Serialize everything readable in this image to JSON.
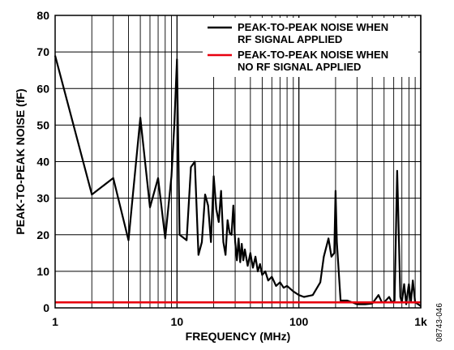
{
  "chart_data": {
    "type": "line",
    "xscale": "log",
    "xlim": [
      1,
      1000
    ],
    "ylim": [
      0,
      80
    ],
    "xlabel": "FREQUENCY (MHz)",
    "ylabel": "PEAK-TO-PEAK NOISE (fF)",
    "xticks": [
      "1",
      "10",
      "100",
      "1k"
    ],
    "yticks": [
      "0",
      "10",
      "20",
      "30",
      "40",
      "50",
      "60",
      "70",
      "80"
    ],
    "grid": true,
    "legend_position": "top-right",
    "figure_id": "08743-046",
    "series": [
      {
        "name_lines": [
          "PEAK-TO-PEAK NOISE WHEN",
          "RF SIGNAL APPLIED"
        ],
        "color": "#000000",
        "points": [
          [
            1,
            69
          ],
          [
            2,
            31
          ],
          [
            3,
            35.5
          ],
          [
            4,
            18.5
          ],
          [
            5,
            52
          ],
          [
            6,
            27.5
          ],
          [
            7,
            35.5
          ],
          [
            8,
            19
          ],
          [
            9,
            36
          ],
          [
            9.5,
            50
          ],
          [
            10,
            68
          ],
          [
            10.5,
            20
          ],
          [
            12,
            18.5
          ],
          [
            13,
            38.5
          ],
          [
            14,
            40
          ],
          [
            15,
            14.5
          ],
          [
            16,
            18
          ],
          [
            17,
            31
          ],
          [
            18,
            28
          ],
          [
            19,
            18
          ],
          [
            20,
            36
          ],
          [
            21,
            27
          ],
          [
            22,
            23.5
          ],
          [
            23,
            32
          ],
          [
            24,
            18
          ],
          [
            25,
            14.5
          ],
          [
            26,
            24
          ],
          [
            27,
            20.5
          ],
          [
            28,
            20
          ],
          [
            29,
            28
          ],
          [
            30,
            18
          ],
          [
            31,
            13
          ],
          [
            32,
            19
          ],
          [
            33,
            12.5
          ],
          [
            34,
            17.5
          ],
          [
            35,
            13
          ],
          [
            36,
            16
          ],
          [
            38,
            11.5
          ],
          [
            40,
            15
          ],
          [
            42,
            11
          ],
          [
            44,
            14
          ],
          [
            46,
            10
          ],
          [
            48,
            12
          ],
          [
            50,
            9
          ],
          [
            53,
            10
          ],
          [
            56,
            7.5
          ],
          [
            60,
            8.5
          ],
          [
            65,
            6
          ],
          [
            70,
            7
          ],
          [
            75,
            5.5
          ],
          [
            80,
            6
          ],
          [
            90,
            4.5
          ],
          [
            100,
            3.5
          ],
          [
            110,
            3
          ],
          [
            130,
            3.5
          ],
          [
            150,
            7
          ],
          [
            160,
            14
          ],
          [
            175,
            19
          ],
          [
            185,
            14
          ],
          [
            195,
            15
          ],
          [
            200,
            32
          ],
          [
            205,
            18
          ],
          [
            220,
            2
          ],
          [
            250,
            2
          ],
          [
            300,
            1
          ],
          [
            350,
            1
          ],
          [
            400,
            1.2
          ],
          [
            450,
            3.5
          ],
          [
            480,
            1.5
          ],
          [
            500,
            1.5
          ],
          [
            550,
            3
          ],
          [
            580,
            1.5
          ],
          [
            610,
            2
          ],
          [
            640,
            37.5
          ],
          [
            660,
            20
          ],
          [
            680,
            3
          ],
          [
            700,
            1.5
          ],
          [
            730,
            6.5
          ],
          [
            760,
            1
          ],
          [
            790,
            5.5
          ],
          [
            800,
            6.5
          ],
          [
            830,
            1.5
          ],
          [
            860,
            7.5
          ],
          [
            900,
            1.5
          ],
          [
            950,
            1
          ],
          [
            1000,
            0.5
          ]
        ]
      },
      {
        "name_lines": [
          "PEAK-TO-PEAK NOISE WHEN",
          "NO RF SIGNAL APPLIED"
        ],
        "color": "#e8000f",
        "points": [
          [
            1,
            1.5
          ],
          [
            1000,
            1.5
          ]
        ]
      }
    ]
  }
}
